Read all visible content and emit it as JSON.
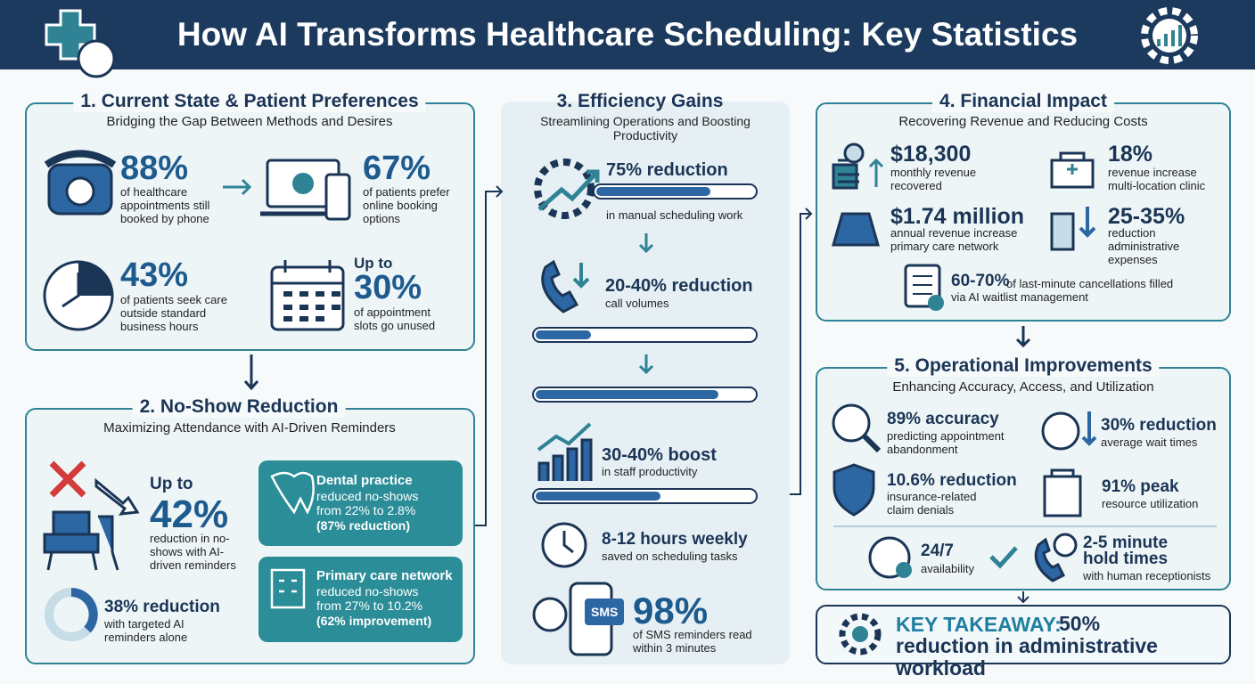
{
  "header": {
    "title": "How AI Transforms Healthcare Scheduling: Key Statistics"
  },
  "sections": [
    {
      "title": "1. Current State & Patient Preferences",
      "subtitle": "Bridging the Gap Between Methods and Desires",
      "stats": [
        {
          "value": "88%",
          "text": "of healthcare appointments still booked by phone"
        },
        {
          "value": "67%",
          "text": "of patients prefer online booking options"
        },
        {
          "value": "43%",
          "text": "of patients seek care outside standard business hours"
        },
        {
          "prefix": "Up to",
          "value": "30%",
          "text": "of appointment slots go unused"
        }
      ]
    },
    {
      "title": "2. No-Show Reduction",
      "subtitle": "Maximizing Attendance with AI-Driven Reminders",
      "stats": [
        {
          "prefix": "Up to",
          "value": "42%",
          "text": "reduction in no-shows with AI-driven reminders"
        },
        {
          "value": "38% reduction",
          "text": "with targeted AI reminders alone"
        }
      ],
      "cases": [
        {
          "title": "Dental practice",
          "text": "reduced no-shows from 22% to 2.8%",
          "note": "(87% reduction)"
        },
        {
          "title": "Primary care network",
          "text": "reduced no-shows from 27% to 10.2%",
          "note": "(62% improvement)"
        }
      ]
    },
    {
      "title": "3. Efficiency Gains",
      "subtitle": "Streamlining Operations and Boosting Productivity",
      "stats": [
        {
          "value": "75% reduction",
          "text": "in manual scheduling work"
        },
        {
          "value": "20-40% reduction",
          "text": "call volumes"
        },
        {
          "value": "30-40% boost",
          "text": "in staff productivity"
        },
        {
          "value": "8-12 hours weekly",
          "text": "saved on scheduling tasks"
        },
        {
          "value": "98%",
          "text": "of SMS reminders read within 3 minutes"
        }
      ],
      "icon_label": "SMS"
    },
    {
      "title": "4. Financial Impact",
      "subtitle": "Recovering Revenue and Reducing Costs",
      "stats": [
        {
          "value": "$18,300",
          "text": "monthly revenue recovered"
        },
        {
          "value": "18%",
          "text": "revenue increase multi-location clinic"
        },
        {
          "value": "$1.74 million",
          "text": "annual revenue increase primary care network"
        },
        {
          "value": "25-35%",
          "text": "reduction administrative expenses"
        },
        {
          "value": "60-70%",
          "text": "of last-minute cancellations filled via AI waitlist management"
        }
      ]
    },
    {
      "title": "5. Operational Improvements",
      "subtitle": "Enhancing Accuracy, Access, and Utilization",
      "stats": [
        {
          "value": "89% accuracy",
          "text": "predicting appointment abandonment"
        },
        {
          "value": "30% reduction",
          "text": "average wait times"
        },
        {
          "value": "10.6% reduction",
          "text": "insurance-related claim denials"
        },
        {
          "value": "91% peak",
          "text": "resource utilization"
        },
        {
          "value": "24/7",
          "text": "availability"
        },
        {
          "value": "2-5 minute hold times",
          "text": "with human receptionists"
        }
      ]
    }
  ],
  "takeaway": {
    "label": "KEY TAKEAWAY:",
    "text": "50% reduction in administrative workload"
  }
}
